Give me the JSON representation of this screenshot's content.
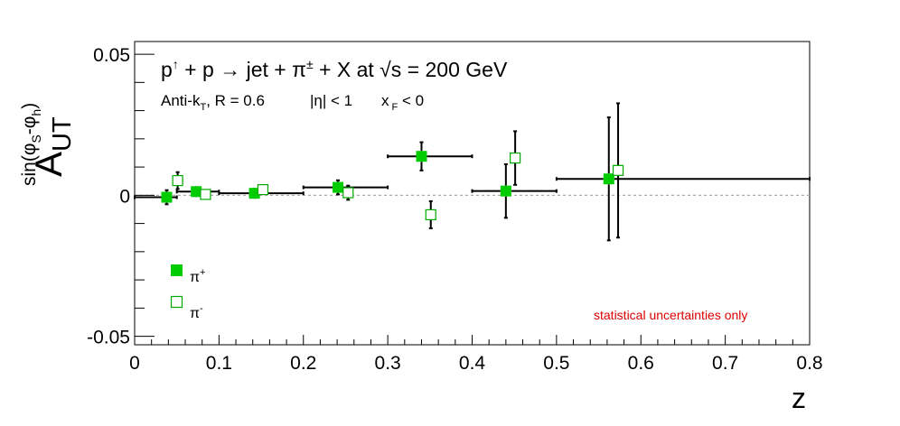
{
  "chart_data": {
    "type": "scatter",
    "title": "p↑ + p → jet + π± + X at √s = 200 GeV",
    "title_parts": {
      "p1": "p",
      "arrow_up": "↑",
      "plus1": " + p ",
      "arrow": "→",
      "jet": " jet + π",
      "pm": "±",
      "rest": " + X at ",
      "sqrt": "√",
      "energy": "s = 200 GeV"
    },
    "subtitle_parts": {
      "antik": "Anti-k",
      "t_sub": "T",
      "radius": ", R = 0.6",
      "eta": "|η| < 1",
      "xf": "x",
      "f_sub": "F",
      "xf_cond": " < 0"
    },
    "xlabel": "z",
    "ylabel_parts": {
      "main": "A",
      "sub": "UT",
      "sup_prefix": "sin(φ",
      "sup_s": "S",
      "sup_mid": "-φ",
      "sup_h": "h",
      "sup_suffix": ")"
    },
    "xlim": [
      0,
      0.8
    ],
    "ylim": [
      -0.053,
      0.0545
    ],
    "x_ticks": [
      {
        "value": 0,
        "label": "0"
      },
      {
        "value": 0.1,
        "label": "0.1"
      },
      {
        "value": 0.2,
        "label": "0.2"
      },
      {
        "value": 0.3,
        "label": "0.3"
      },
      {
        "value": 0.4,
        "label": "0.4"
      },
      {
        "value": 0.5,
        "label": "0.5"
      },
      {
        "value": 0.6,
        "label": "0.6"
      },
      {
        "value": 0.7,
        "label": "0.7"
      },
      {
        "value": 0.8,
        "label": "0.8"
      }
    ],
    "y_ticks": [
      {
        "value": 0.05,
        "label": "0.05"
      },
      {
        "value": 0,
        "label": "0"
      },
      {
        "value": -0.05,
        "label": "-0.05"
      }
    ],
    "y_minor_step": 0.01,
    "x_minor_step": 0.02,
    "zero_line": true,
    "series": [
      {
        "name": "π",
        "name_sup": "+",
        "marker": "filled-square",
        "color": "#00cc00",
        "points": [
          {
            "x": 0.038,
            "y": -0.0007,
            "xerr_lo": 0.038,
            "xerr_hi": 0.012,
            "yerr": 0.0025
          },
          {
            "x": 0.073,
            "y": 0.0013,
            "xerr_lo": 0.023,
            "xerr_hi": 0.027,
            "yerr": 0.0015
          },
          {
            "x": 0.142,
            "y": 0.0007,
            "xerr_lo": 0.042,
            "xerr_hi": 0.058,
            "yerr": 0.0012
          },
          {
            "x": 0.241,
            "y": 0.0028,
            "xerr_lo": 0.041,
            "xerr_hi": 0.059,
            "yerr": 0.0025
          },
          {
            "x": 0.34,
            "y": 0.0138,
            "xerr_lo": 0.04,
            "xerr_hi": 0.06,
            "yerr": 0.005
          },
          {
            "x": 0.44,
            "y": 0.0015,
            "xerr_lo": 0.04,
            "xerr_hi": 0.06,
            "yerr": 0.0095
          },
          {
            "x": 0.562,
            "y": 0.0058,
            "xerr_lo": 0.062,
            "xerr_hi": 0.238,
            "yerr": 0.0218
          }
        ]
      },
      {
        "name": "π",
        "name_sup": "-",
        "marker": "open-square",
        "color": "#00aa00",
        "points": [
          {
            "x": 0.051,
            "y": 0.0052,
            "yerr": 0.003
          },
          {
            "x": 0.084,
            "y": 0.0003,
            "yerr": 0.0015
          },
          {
            "x": 0.152,
            "y": 0.002,
            "yerr": 0.0012
          },
          {
            "x": 0.253,
            "y": 0.0009,
            "yerr": 0.0025
          },
          {
            "x": 0.351,
            "y": -0.0069,
            "yerr": 0.0048
          },
          {
            "x": 0.451,
            "y": 0.0132,
            "yerr": 0.0095
          },
          {
            "x": 0.573,
            "y": 0.0088,
            "yerr": 0.0238
          }
        ]
      }
    ],
    "legend_placement": "bottom-left",
    "annotation": "statistical uncertainties only",
    "annotation_color": "#dd0000"
  }
}
